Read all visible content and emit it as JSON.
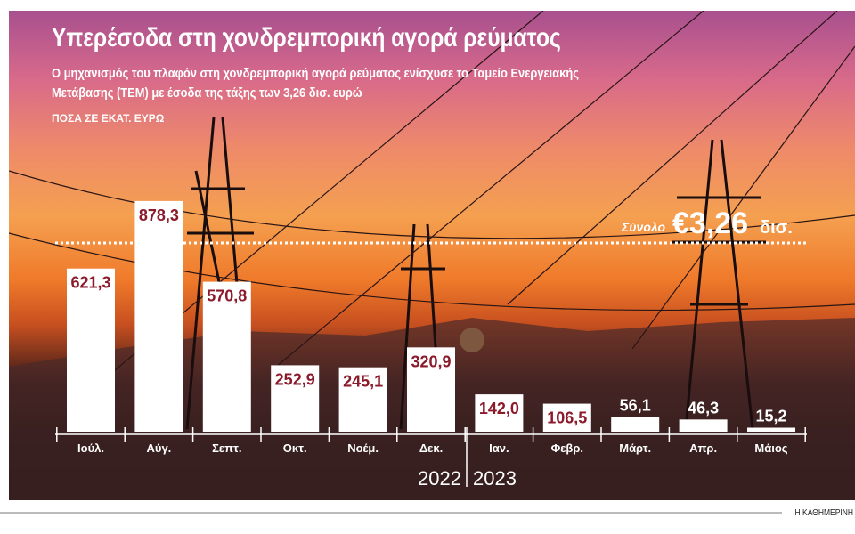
{
  "title": "Υπερέσοδα στη χονδρεμπορική αγορά ρεύματος",
  "subtitle_line1": "Ο μηχανισμός του πλαφόν στη χονδρεμπορική αγορά ρεύματος ενίσχυσε το Ταμείο Ενεργειακής",
  "subtitle_line2": "Μετάβασης (ΤΕΜ) με έσοδα της τάξης των 3,26 δισ. ευρώ",
  "unit_label": "ΠΟΣΑ ΣΕ ΕΚΑΤ. ΕΥΡΩ",
  "total": {
    "label": "Σύνολο",
    "value": "€3,26",
    "suffix": "δισ."
  },
  "brand": "Η ΚΑΘΗΜΕΡΙΝΗ",
  "colors": {
    "bar": "#ffffff",
    "label_inside": "#8b1a2b",
    "label_outside": "#ffffff"
  },
  "chart_data": {
    "type": "bar",
    "categories": [
      "Ιούλ.",
      "Αύγ.",
      "Σεπτ.",
      "Οκτ.",
      "Νοέμ.",
      "Δεκ.",
      "Ιαν.",
      "Φεβρ.",
      "Μάρτ.",
      "Απρ.",
      "Μάιος"
    ],
    "values": [
      621.3,
      878.3,
      570.8,
      252.9,
      245.1,
      320.9,
      142.0,
      106.5,
      56.1,
      46.3,
      15.2
    ],
    "data_labels": [
      "621,3",
      "878,3",
      "570,8",
      "252,9",
      "245,1",
      "320,9",
      "142,0",
      "106,5",
      "56,1",
      "46,3",
      "15,2"
    ],
    "year_labels": [
      "2022",
      "2023"
    ],
    "reference_line": {
      "value": "€3,26 δισ.",
      "style": "dotted"
    },
    "grid": false
  }
}
